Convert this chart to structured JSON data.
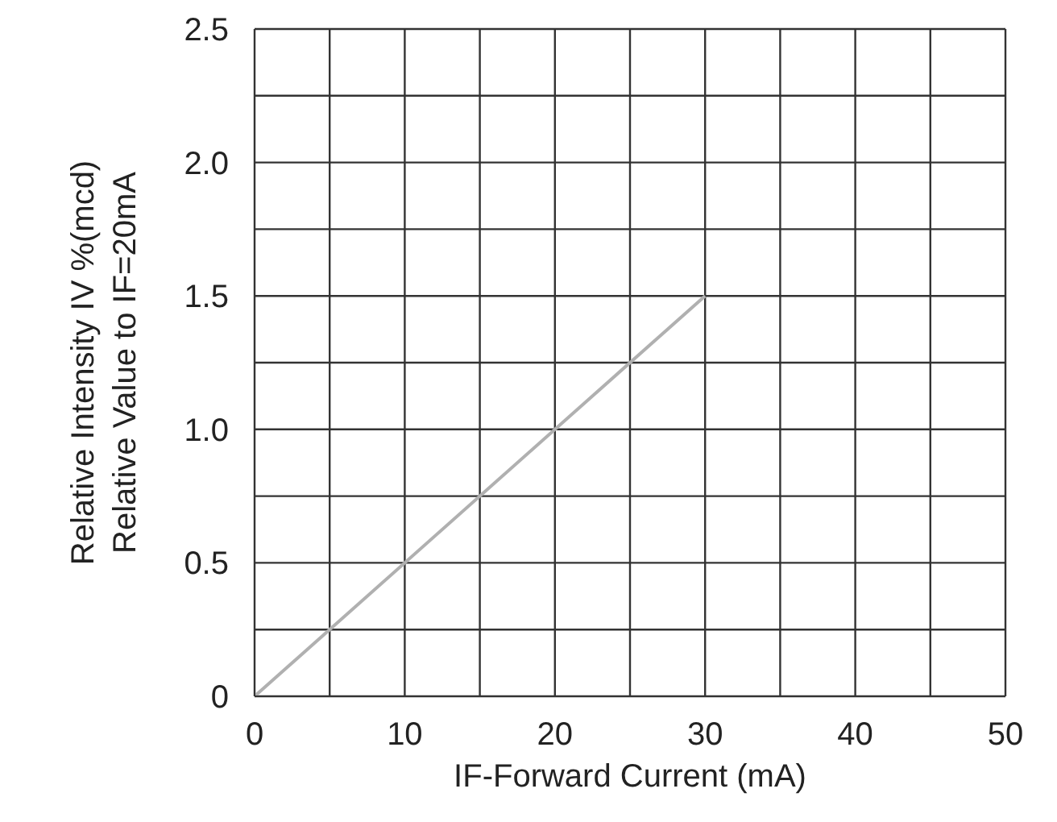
{
  "chart_data": {
    "type": "line",
    "xlabel": "IF-Forward Current (mA)",
    "ylabel": "Relative Intensity IV %(mcd)\nRelative Value to IF=20mA",
    "x": [
      0,
      30
    ],
    "series": [
      {
        "color": "#b0b0b0",
        "values": [
          0,
          1.5
        ]
      }
    ],
    "xlim": [
      0,
      50
    ],
    "xticks": [
      0,
      {
        "value": 5,
        "label": null
      },
      10,
      {
        "value": 15,
        "label": null
      },
      20,
      {
        "value": 25,
        "label": null
      },
      30,
      {
        "value": 35,
        "label": null
      },
      40,
      {
        "value": 45,
        "label": null
      },
      50
    ],
    "ylim": [
      0,
      2.5
    ],
    "yticks": [
      0,
      {
        "value": 0.25,
        "label": null
      },
      {
        "value": 0.5,
        "label": "0.5"
      },
      {
        "value": 0.75,
        "label": null
      },
      {
        "value": 1,
        "label": "1.0"
      },
      {
        "value": 1.25,
        "label": null
      },
      {
        "value": 1.5,
        "label": "1.5"
      },
      {
        "value": 1.75,
        "label": null
      },
      {
        "value": 2,
        "label": "2.0"
      },
      {
        "value": 2.25,
        "label": null
      },
      {
        "value": 2.5,
        "label": "2.5"
      }
    ],
    "grid": true,
    "marker": "none",
    "line_style": "solid",
    "legend": false
  }
}
